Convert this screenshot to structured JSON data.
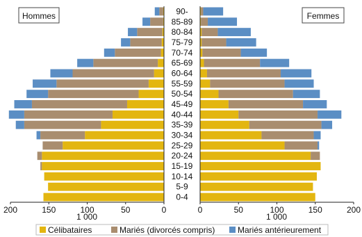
{
  "chart_data": {
    "type": "bar",
    "subtype": "population-pyramid",
    "panels": {
      "left": "Hommes",
      "right": "Femmes"
    },
    "categories": [
      "0-4",
      "5-9",
      "10-14",
      "15-19",
      "20-24",
      "25-29",
      "30-34",
      "35-39",
      "40-44",
      "45-49",
      "50-54",
      "55-59",
      "60-64",
      "65-69",
      "70-74",
      "75-79",
      "80-84",
      "85-89",
      "90-"
    ],
    "series": [
      {
        "name": "Célibataires",
        "color": "#e3b610",
        "hommes": [
          157,
          151,
          156,
          159,
          159,
          132,
          103,
          82,
          67,
          48,
          33,
          20,
          13,
          8,
          4,
          3,
          2,
          1,
          1
        ],
        "femmes": [
          150,
          147,
          152,
          157,
          144,
          110,
          80,
          64,
          50,
          37,
          24,
          13,
          9,
          5,
          3,
          2,
          2,
          1,
          1
        ]
      },
      {
        "name": "Mariés (divorcés compris)",
        "color": "#a98d6f",
        "hommes": [
          0,
          0,
          0,
          2,
          6,
          26,
          58,
          100,
          115,
          124,
          118,
          120,
          106,
          84,
          60,
          41,
          33,
          17,
          5
        ],
        "femmes": [
          0,
          0,
          0,
          0,
          12,
          43,
          68,
          94,
          103,
          97,
          97,
          97,
          96,
          73,
          50,
          32,
          21,
          9,
          3
        ]
      },
      {
        "name": "Mariés antérieurement",
        "color": "#5b8ec4",
        "hommes": [
          0,
          0,
          0,
          0,
          0,
          0,
          5,
          11,
          20,
          23,
          28,
          31,
          29,
          21,
          14,
          12,
          12,
          10,
          6
        ],
        "femmes": [
          0,
          0,
          0,
          0,
          0,
          2,
          9,
          14,
          31,
          31,
          35,
          38,
          40,
          38,
          34,
          39,
          43,
          38,
          26
        ]
      }
    ],
    "axis": {
      "left_ticks": [
        "200",
        "150",
        "100",
        "50",
        "0"
      ],
      "right_ticks": [
        "0",
        "50",
        "100",
        "150",
        "200"
      ],
      "xlim": [
        0,
        200
      ],
      "unit_label": "1 000"
    },
    "legend": {
      "position": "bottom"
    }
  }
}
